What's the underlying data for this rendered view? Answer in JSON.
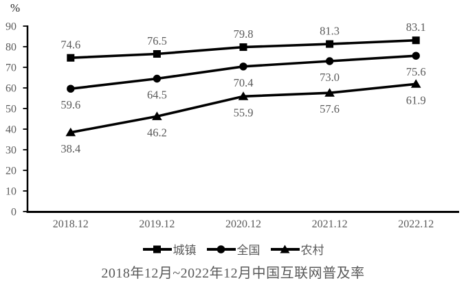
{
  "chart_data": {
    "type": "line",
    "title": "2018年12月~2022年12月中国互联网普及率",
    "ylabel": "%",
    "categories": [
      "2018.12",
      "2019.12",
      "2020.12",
      "2021.12",
      "2022.12"
    ],
    "series": [
      {
        "id": "urban",
        "name": "城镇",
        "marker": "square",
        "values": [
          74.6,
          76.5,
          79.8,
          81.3,
          83.1
        ],
        "labels": [
          "74.6",
          "76.5",
          "79.8",
          "81.3",
          "83.1"
        ],
        "label_position": "above"
      },
      {
        "id": "national",
        "name": "全国",
        "marker": "circle",
        "values": [
          59.6,
          64.5,
          70.4,
          73.0,
          75.6
        ],
        "labels": [
          "59.6",
          "64.5",
          "70.4",
          "73.0",
          "75.6"
        ],
        "label_position": "below"
      },
      {
        "id": "rural",
        "name": "农村",
        "marker": "triangle",
        "values": [
          38.4,
          46.2,
          55.9,
          57.6,
          61.9
        ],
        "labels": [
          "38.4",
          "46.2",
          "55.9",
          "57.6",
          "61.9"
        ],
        "label_position": "below"
      }
    ],
    "ylim": [
      0,
      90
    ],
    "ytick_step": 10,
    "ytick_labels": [
      "0",
      "10",
      "20",
      "30",
      "40",
      "50",
      "60",
      "70",
      "80",
      "90"
    ],
    "grid": false,
    "legend_position": "bottom",
    "colors": {
      "line": "#000000",
      "marker": "#000000",
      "axis": "#000000",
      "tick_text": "#595959",
      "data_label_text": "#595959",
      "title_text": "#595959"
    }
  }
}
